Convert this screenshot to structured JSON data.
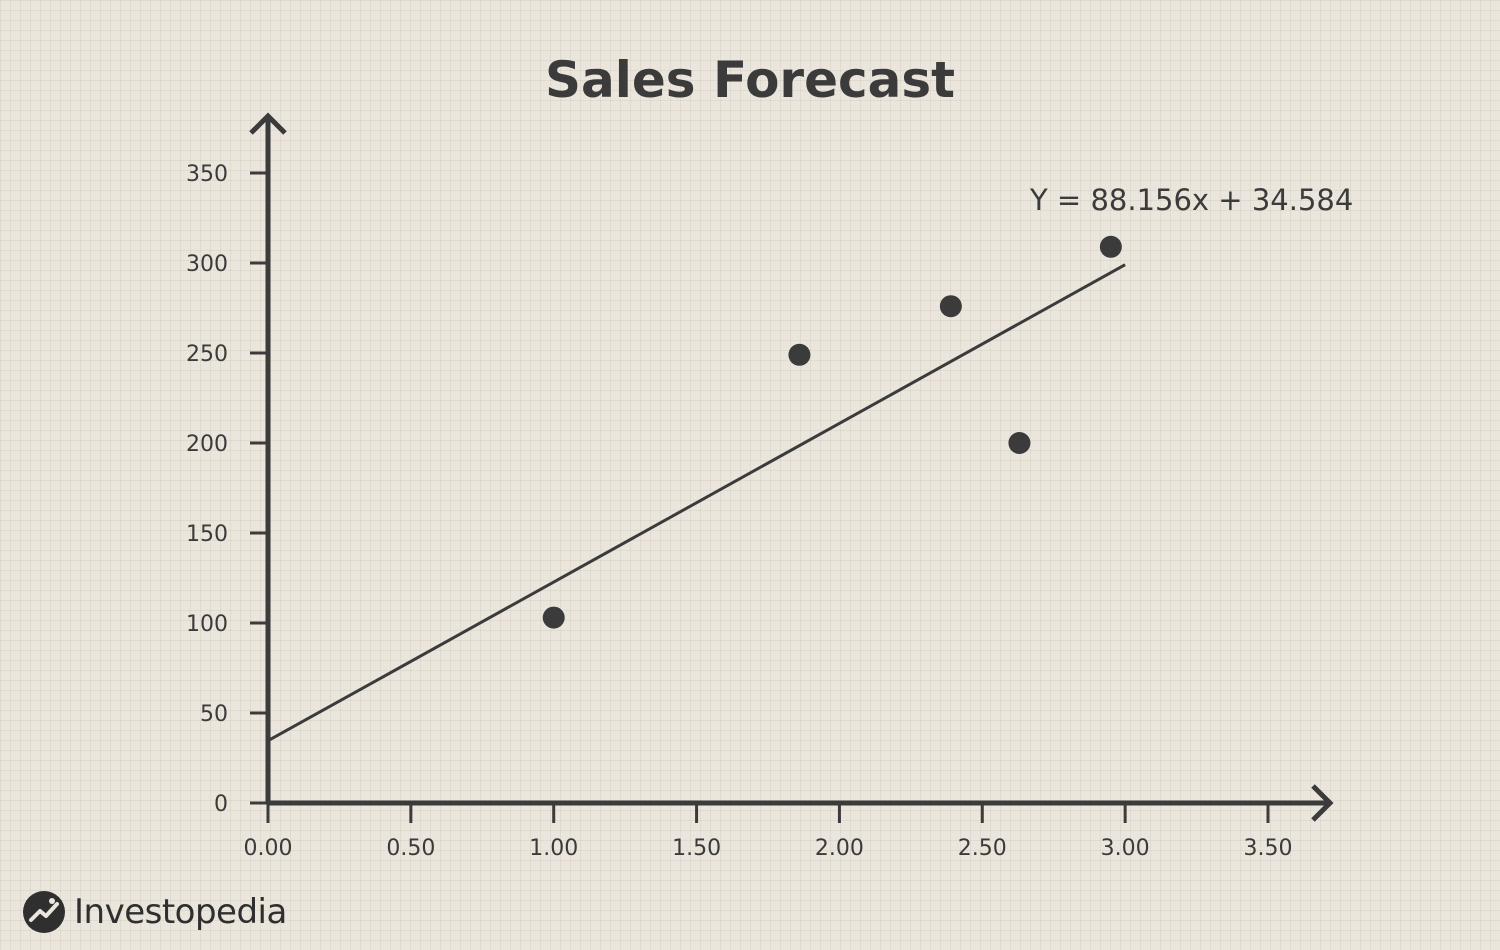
{
  "chart_data": {
    "type": "scatter",
    "title": "Sales Forecast",
    "xlabel": "",
    "ylabel": "",
    "xlim": [
      0,
      3.5
    ],
    "ylim": [
      0,
      350
    ],
    "x_ticks": [
      "0.00",
      "0.50",
      "1.00",
      "1.50",
      "2.00",
      "2.50",
      "3.00",
      "3.50"
    ],
    "y_ticks": [
      "0",
      "50",
      "100",
      "150",
      "200",
      "250",
      "300",
      "350"
    ],
    "series": [
      {
        "points": [
          {
            "x": 1.0,
            "y": 103
          },
          {
            "x": 1.86,
            "y": 249
          },
          {
            "x": 2.39,
            "y": 276
          },
          {
            "x": 2.63,
            "y": 200
          },
          {
            "x": 2.95,
            "y": 309
          }
        ]
      }
    ],
    "trendline": {
      "slope": 88.156,
      "intercept": 34.584,
      "x_range": [
        0,
        3.0
      ],
      "label": "Y = 88.156x + 34.584"
    },
    "grid": false,
    "colors": {
      "ink": "#3b3b3b",
      "background": "#ebe6dd"
    }
  },
  "brand": {
    "name": "Investopedia",
    "icon": "investopedia-logo-icon"
  }
}
